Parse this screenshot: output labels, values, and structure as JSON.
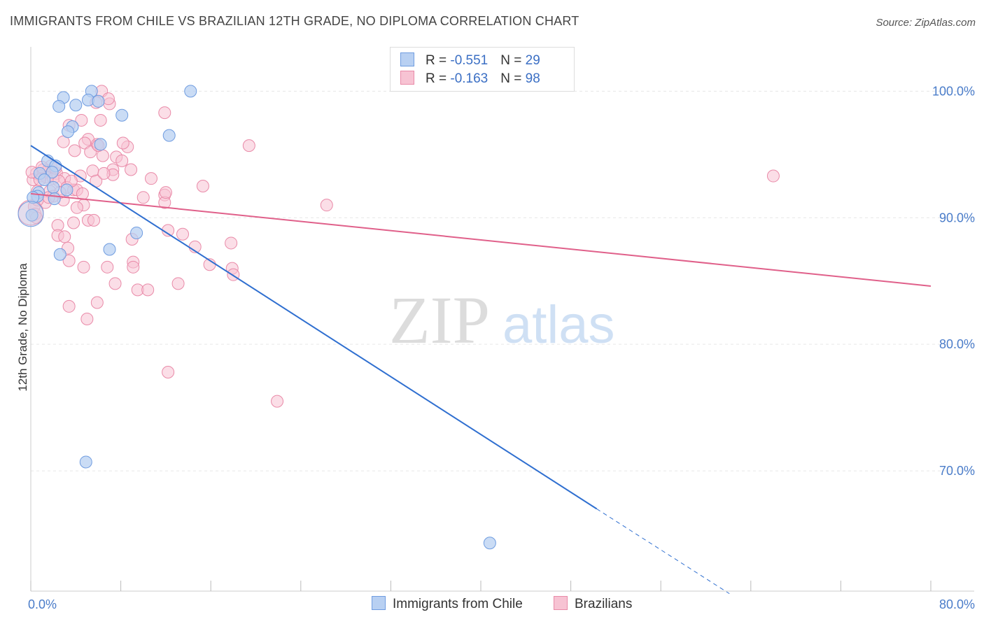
{
  "title": "IMMIGRANTS FROM CHILE VS BRAZILIAN 12TH GRADE, NO DIPLOMA CORRELATION CHART",
  "source": "Source: ZipAtlas.com",
  "watermark": {
    "zip": "ZIP",
    "atlas": "atlas"
  },
  "legend": {
    "rows": [
      {
        "r_label": "R = ",
        "r_value": "-0.551",
        "n_label": "N = ",
        "n_value": "29",
        "fill": "#b8d0f2",
        "stroke": "#6f9ce0"
      },
      {
        "r_label": "R = ",
        "r_value": "-0.163",
        "n_label": "N = ",
        "n_value": "98",
        "fill": "#f7c3d3",
        "stroke": "#e98aa8"
      }
    ]
  },
  "bottom_legend": [
    {
      "label": "Immigrants from Chile",
      "fill": "#b8d0f2",
      "stroke": "#6f9ce0"
    },
    {
      "label": "Brazilians",
      "fill": "#f7c3d3",
      "stroke": "#e98aa8"
    }
  ],
  "chart_data": {
    "type": "scatter",
    "title": "IMMIGRANTS FROM CHILE VS BRAZILIAN 12TH GRADE, NO DIPLOMA CORRELATION CHART",
    "xlabel": "",
    "ylabel": "12th Grade, No Diploma",
    "xlim": [
      0,
      80
    ],
    "ylim": [
      60.5,
      103.5
    ],
    "x_tick_labels": [
      {
        "v": 0,
        "label": "0.0%"
      },
      {
        "v": 80,
        "label": "80.0%"
      }
    ],
    "y_tick_labels": [
      {
        "v": 100,
        "label": "100.0%"
      },
      {
        "v": 90,
        "label": "90.0%"
      },
      {
        "v": 80,
        "label": "80.0%"
      },
      {
        "v": 70,
        "label": "70.0%"
      }
    ],
    "grid": true,
    "legend_position": "top-center",
    "series": [
      {
        "name": "Immigrants from Chile",
        "color": "#6f9ce0",
        "fill": "#b8d0f2",
        "trend": {
          "x1": 0,
          "y1": 95.7,
          "x2": 50.3,
          "y2": 67.0,
          "dashed_to_x": 62.1,
          "dashed_to_y": 60.3,
          "color": "#2f6fd0"
        },
        "points": [
          [
            5.4,
            100.0
          ],
          [
            14.2,
            100.0
          ],
          [
            2.9,
            99.5
          ],
          [
            5.1,
            99.3
          ],
          [
            6.0,
            99.2
          ],
          [
            2.5,
            98.8
          ],
          [
            4.0,
            98.9
          ],
          [
            8.1,
            98.1
          ],
          [
            3.7,
            97.2
          ],
          [
            3.3,
            96.8
          ],
          [
            12.3,
            96.5
          ],
          [
            6.2,
            95.8
          ],
          [
            1.5,
            94.5
          ],
          [
            2.2,
            94.1
          ],
          [
            1.9,
            93.6
          ],
          [
            0.8,
            93.5
          ],
          [
            1.2,
            93.0
          ],
          [
            2.0,
            92.4
          ],
          [
            3.2,
            92.2
          ],
          [
            0.7,
            92.0
          ],
          [
            0.6,
            91.7
          ],
          [
            2.1,
            91.5
          ],
          [
            0.2,
            91.6
          ],
          [
            0.1,
            90.2
          ],
          [
            9.4,
            88.8
          ],
          [
            2.6,
            87.1
          ],
          [
            7.0,
            87.5
          ],
          [
            4.9,
            70.7
          ],
          [
            40.8,
            64.3
          ]
        ],
        "big_point": [
          0.0,
          90.3
        ]
      },
      {
        "name": "Brazilians",
        "color": "#e98aa8",
        "fill": "#f7c3d3",
        "trend": {
          "x1": 0,
          "y1": 91.9,
          "x2": 80,
          "y2": 84.6,
          "color": "#e0608a"
        },
        "points": [
          [
            6.3,
            100.0
          ],
          [
            5.8,
            99.1
          ],
          [
            7.0,
            99.0
          ],
          [
            6.9,
            99.4
          ],
          [
            11.9,
            98.3
          ],
          [
            6.2,
            97.7
          ],
          [
            4.5,
            97.7
          ],
          [
            3.4,
            97.3
          ],
          [
            2.9,
            96.0
          ],
          [
            5.1,
            96.2
          ],
          [
            4.8,
            95.9
          ],
          [
            5.9,
            95.8
          ],
          [
            8.6,
            95.6
          ],
          [
            8.2,
            95.9
          ],
          [
            19.4,
            95.7
          ],
          [
            3.9,
            95.3
          ],
          [
            5.3,
            95.2
          ],
          [
            6.4,
            94.9
          ],
          [
            7.6,
            94.8
          ],
          [
            8.1,
            94.5
          ],
          [
            1.8,
            94.1
          ],
          [
            1.1,
            93.8
          ],
          [
            1.5,
            93.7
          ],
          [
            2.3,
            93.5
          ],
          [
            0.5,
            93.5
          ],
          [
            0.9,
            93.3
          ],
          [
            1.4,
            93.2
          ],
          [
            2.0,
            93.1
          ],
          [
            3.0,
            93.1
          ],
          [
            4.4,
            93.3
          ],
          [
            5.5,
            93.7
          ],
          [
            7.3,
            93.8
          ],
          [
            7.3,
            93.4
          ],
          [
            10.7,
            93.1
          ],
          [
            0.2,
            93.0
          ],
          [
            0.8,
            93.0
          ],
          [
            2.5,
            92.9
          ],
          [
            3.2,
            92.4
          ],
          [
            5.8,
            92.9
          ],
          [
            15.3,
            92.5
          ],
          [
            1.7,
            92.1
          ],
          [
            0.6,
            92.1
          ],
          [
            3.8,
            92.2
          ],
          [
            4.1,
            92.2
          ],
          [
            11.9,
            91.8
          ],
          [
            10.0,
            91.6
          ],
          [
            2.0,
            91.7
          ],
          [
            2.9,
            91.4
          ],
          [
            1.3,
            91.2
          ],
          [
            11.9,
            91.2
          ],
          [
            4.7,
            91.0
          ],
          [
            26.3,
            91.0
          ],
          [
            0.3,
            90.9
          ],
          [
            4.1,
            90.8
          ],
          [
            0.4,
            90.3
          ],
          [
            0.5,
            90.0
          ],
          [
            5.1,
            89.8
          ],
          [
            5.6,
            89.8
          ],
          [
            3.8,
            89.6
          ],
          [
            2.4,
            89.4
          ],
          [
            12.2,
            89.0
          ],
          [
            13.5,
            88.7
          ],
          [
            2.4,
            88.6
          ],
          [
            3.0,
            88.5
          ],
          [
            9.0,
            88.3
          ],
          [
            17.8,
            88.0
          ],
          [
            14.6,
            87.7
          ],
          [
            3.3,
            87.6
          ],
          [
            3.4,
            86.6
          ],
          [
            4.7,
            86.1
          ],
          [
            6.8,
            86.1
          ],
          [
            9.1,
            86.5
          ],
          [
            9.1,
            86.1
          ],
          [
            15.9,
            86.3
          ],
          [
            17.9,
            86.0
          ],
          [
            18.0,
            85.5
          ],
          [
            7.5,
            84.8
          ],
          [
            13.1,
            84.8
          ],
          [
            9.5,
            84.3
          ],
          [
            10.4,
            84.3
          ],
          [
            5.9,
            83.3
          ],
          [
            3.4,
            83.0
          ],
          [
            5.0,
            82.0
          ],
          [
            12.2,
            77.8
          ],
          [
            21.9,
            75.5
          ],
          [
            66.0,
            93.3
          ],
          [
            0.1,
            93.6
          ],
          [
            1.0,
            94.0
          ],
          [
            2.2,
            93.9
          ],
          [
            6.0,
            95.7
          ],
          [
            3.6,
            92.9
          ],
          [
            0.6,
            91.4
          ],
          [
            6.5,
            93.5
          ],
          [
            8.9,
            93.8
          ],
          [
            12.0,
            92.0
          ],
          [
            4.6,
            91.9
          ],
          [
            2.6,
            92.0
          ],
          [
            1.6,
            91.6
          ]
        ],
        "big_point": [
          0.0,
          90.4
        ]
      }
    ]
  }
}
